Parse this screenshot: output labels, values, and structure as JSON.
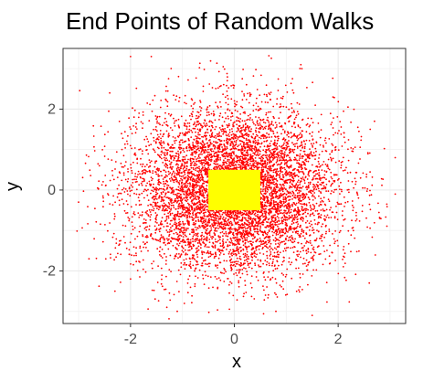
{
  "chart_data": {
    "type": "scatter",
    "title": "End Points of Random Walks",
    "xlabel": "x",
    "ylabel": "y",
    "xlim": [
      -3.3,
      3.3
    ],
    "ylim": [
      -3.3,
      3.5
    ],
    "x_ticks": [
      -2,
      0,
      2
    ],
    "x_tick_labels": [
      "-2",
      "0",
      "2"
    ],
    "y_ticks": [
      -2,
      0,
      2
    ],
    "y_tick_labels": [
      "-2",
      "0",
      "2"
    ],
    "grid": true,
    "legend": "none",
    "series": [
      {
        "marker_color": "#ff0000",
        "distribution": "approximately normal, centered at (0, 0), standard deviation about 1 in each direction",
        "points": [
          [
            -2.0,
            3.3
          ],
          [
            -1.6,
            3.3
          ],
          [
            1.3,
            3.0
          ],
          [
            -2.4,
            2.4
          ],
          [
            1.9,
            2.3
          ],
          [
            -2.6,
            0.6
          ],
          [
            -3.0,
            -0.3
          ],
          [
            3.1,
            0.8
          ],
          [
            3.1,
            -0.1
          ],
          [
            2.8,
            -0.7
          ],
          [
            2.6,
            -2.3
          ],
          [
            -2.0,
            -2.2
          ],
          [
            -2.3,
            -2.5
          ],
          [
            -1.3,
            -2.9
          ],
          [
            -1.1,
            -3.0
          ],
          [
            0.6,
            -2.6
          ],
          [
            0.8,
            -3.0
          ],
          [
            1.5,
            -3.1
          ],
          [
            -2.8,
            -1.7
          ],
          [
            2.7,
            1.7
          ]
        ]
      }
    ],
    "highlight_rect": {
      "x": [
        -0.5,
        0.5
      ],
      "y": [
        -0.5,
        0.5
      ],
      "color": "#ffff00"
    }
  }
}
